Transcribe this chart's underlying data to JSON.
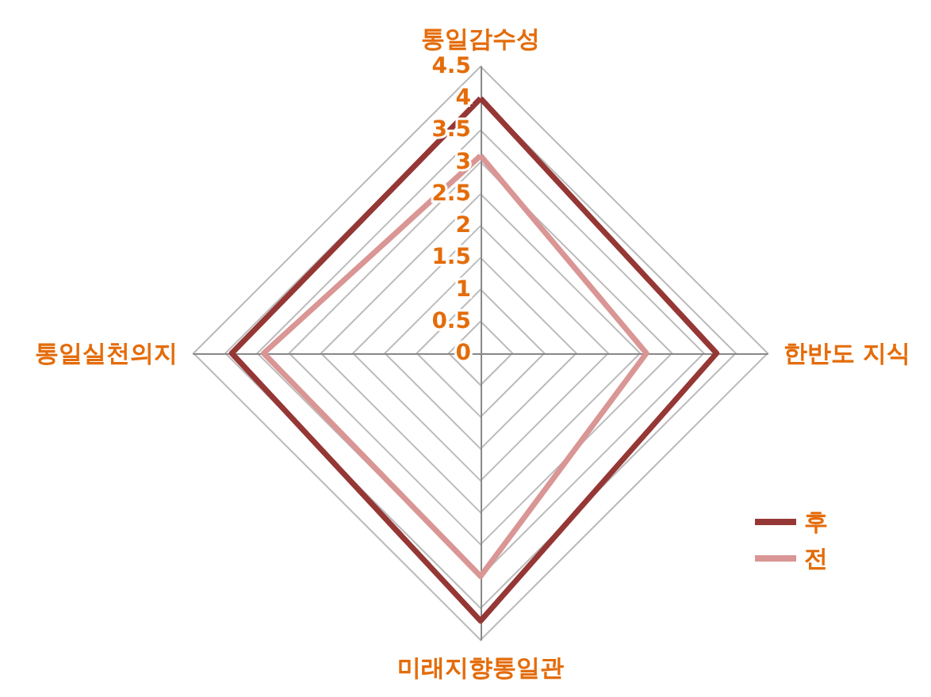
{
  "chart_data": {
    "type": "radar",
    "categories": [
      "통일감수성",
      "한반도 지식",
      "미래지향통일관",
      "통일실천의지"
    ],
    "series": [
      {
        "name": "후",
        "color": "#953735",
        "values": [
          4.0,
          3.7,
          4.2,
          3.9
        ]
      },
      {
        "name": "전",
        "color": "#d99694",
        "values": [
          3.1,
          2.6,
          3.5,
          3.4
        ]
      }
    ],
    "ylim": [
      0,
      4.5
    ],
    "yticks": [
      0,
      0.5,
      1,
      1.5,
      2,
      2.5,
      3,
      3.5,
      4,
      4.5
    ],
    "legend": "bottom right",
    "grid": true,
    "marker": "none",
    "line_style": "solid"
  }
}
